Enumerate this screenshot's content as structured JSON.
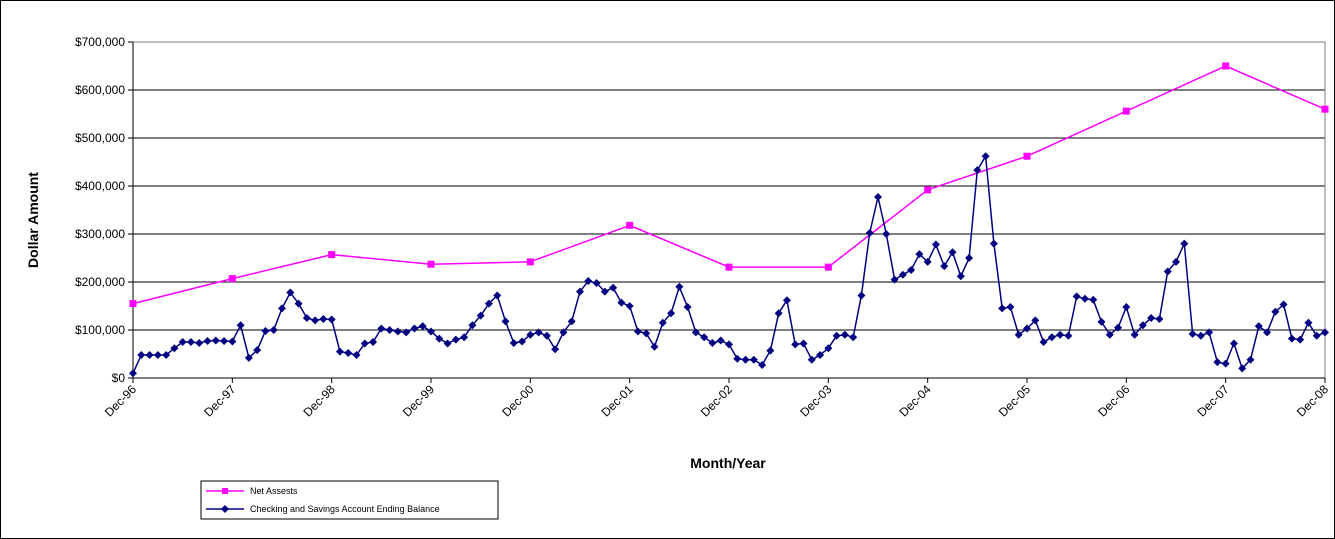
{
  "chart_data": {
    "type": "line",
    "xlabel": "Month/Year",
    "ylabel": "Dollar Amount",
    "ylim": [
      0,
      700000
    ],
    "y_ticks": [
      0,
      100000,
      200000,
      300000,
      400000,
      500000,
      600000,
      700000
    ],
    "y_tick_labels": [
      "$0",
      "$100,000",
      "$200,000",
      "$300,000",
      "$400,000",
      "$500,000",
      "$600,000",
      "$700,000"
    ],
    "x_tick_labels": [
      "Dec-96",
      "Dec-97",
      "Dec-98",
      "Dec-99",
      "Dec-00",
      "Dec-01",
      "Dec-02",
      "Dec-03",
      "Dec-04",
      "Dec-05",
      "Dec-06",
      "Dec-07",
      "Dec-08"
    ],
    "grid": true,
    "legend_position": "bottom-left",
    "series": [
      {
        "name": "Net Assests",
        "color": "#ff00ff",
        "marker": "square",
        "values": [
          155000,
          207000,
          257000,
          237000,
          242000,
          318000,
          231000,
          231000,
          392000,
          462000,
          556000,
          650000,
          560000
        ]
      },
      {
        "name": "Checking and Savings Account Ending Balance",
        "color": "#000080",
        "marker": "diamond",
        "values": [
          10000,
          48000,
          48000,
          48000,
          48000,
          62000,
          75000,
          75000,
          73000,
          77000,
          78000,
          77000,
          76000,
          110000,
          42000,
          58000,
          98000,
          100000,
          145000,
          178000,
          155000,
          125000,
          120000,
          123000,
          122000,
          55000,
          52000,
          48000,
          72000,
          75000,
          103000,
          100000,
          97000,
          95000,
          103000,
          108000,
          97000,
          82000,
          72000,
          80000,
          85000,
          110000,
          130000,
          155000,
          172000,
          118000,
          73000,
          76000,
          90000,
          95000,
          88000,
          60000,
          95000,
          118000,
          180000,
          202000,
          198000,
          180000,
          188000,
          157000,
          150000,
          97000,
          93000,
          65000,
          115000,
          135000,
          190000,
          148000,
          95000,
          85000,
          73000,
          78000,
          70000,
          40000,
          38000,
          38000,
          27000,
          57000,
          135000,
          162000,
          70000,
          72000,
          38000,
          48000,
          62000,
          88000,
          90000,
          85000,
          172000,
          302000,
          377000,
          300000,
          205000,
          215000,
          225000,
          258000,
          242000,
          278000,
          233000,
          262000,
          212000,
          250000,
          433000,
          462000,
          280000,
          145000,
          148000,
          90000,
          103000,
          120000,
          75000,
          85000,
          90000,
          88000,
          170000,
          165000,
          163000,
          117000,
          90000,
          105000,
          148000,
          90000,
          110000,
          125000,
          123000,
          222000,
          242000,
          280000,
          92000,
          88000,
          95000,
          33000,
          30000,
          72000,
          20000,
          38000,
          108000,
          95000,
          138000,
          153000,
          82000,
          80000,
          115000,
          88000,
          95000
        ]
      }
    ]
  }
}
